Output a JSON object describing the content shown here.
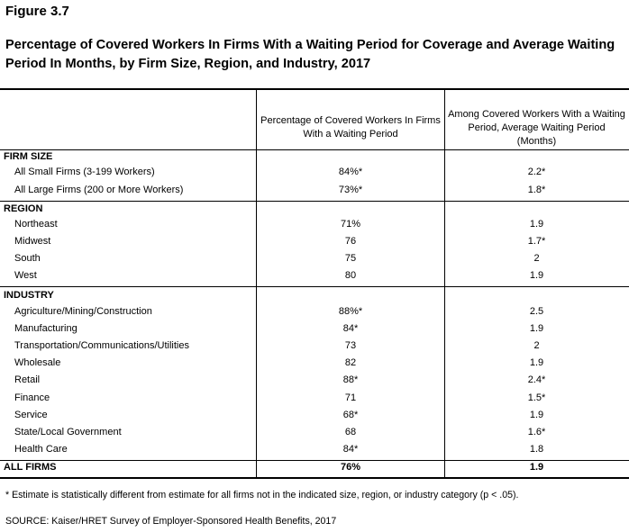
{
  "figure": {
    "label": "Figure 3.7",
    "title": "Percentage of Covered Workers In Firms With a Waiting Period for Coverage and Average Waiting Period In Months, by Firm Size, Region, and Industry, 2017"
  },
  "table": {
    "columns": [
      "",
      "Percentage of Covered Workers In Firms With a Waiting Period",
      "Among Covered Workers With a Waiting Period, Average Waiting Period (Months)"
    ],
    "sections": [
      {
        "heading": "FIRM SIZE",
        "rows": [
          {
            "label": "All Small Firms (3-199 Workers)",
            "pct": "84%*",
            "months": "2.2*"
          },
          {
            "label": "All Large Firms (200 or More Workers)",
            "pct": "73%*",
            "months": "1.8*"
          }
        ]
      },
      {
        "heading": "REGION",
        "rows": [
          {
            "label": "Northeast",
            "pct": "71%",
            "months": "1.9"
          },
          {
            "label": "Midwest",
            "pct": "76",
            "months": "1.7*"
          },
          {
            "label": "South",
            "pct": "75",
            "months": "2"
          },
          {
            "label": "West",
            "pct": "80",
            "months": "1.9"
          }
        ]
      },
      {
        "heading": "INDUSTRY",
        "rows": [
          {
            "label": "Agriculture/Mining/Construction",
            "pct": "88%*",
            "months": "2.5"
          },
          {
            "label": "Manufacturing",
            "pct": "84*",
            "months": "1.9"
          },
          {
            "label": "Transportation/Communications/Utilities",
            "pct": "73",
            "months": "2"
          },
          {
            "label": "Wholesale",
            "pct": "82",
            "months": "1.9"
          },
          {
            "label": "Retail",
            "pct": "88*",
            "months": "2.4*"
          },
          {
            "label": "Finance",
            "pct": "71",
            "months": "1.5*"
          },
          {
            "label": "Service",
            "pct": "68*",
            "months": "1.9"
          },
          {
            "label": "State/Local Government",
            "pct": "68",
            "months": "1.6*"
          },
          {
            "label": "Health Care",
            "pct": "84*",
            "months": "1.8"
          }
        ]
      }
    ],
    "total": {
      "label": "ALL FIRMS",
      "pct": "76%",
      "months": "1.9"
    }
  },
  "footnotes": {
    "note": "* Estimate is statistically different from estimate for all firms not in the indicated size, region, or industry category (p < .05).",
    "source": "SOURCE: Kaiser/HRET Survey of Employer-Sponsored Health Benefits, 2017"
  }
}
